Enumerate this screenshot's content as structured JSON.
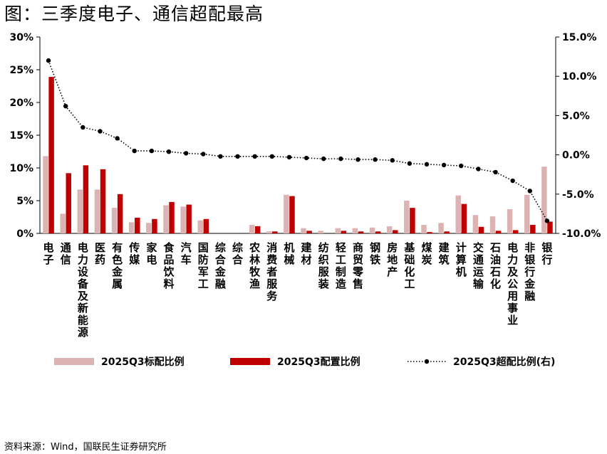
{
  "title": "图：三季度电子、通信超配最高",
  "source": "资料来源：Wind，国联民生证券研究所",
  "chart_data": {
    "type": "bar",
    "categories": [
      "电子",
      "通信",
      "电力设备及新能源",
      "医药",
      "有色金属",
      "传媒",
      "家电",
      "食品饮料",
      "汽车",
      "国防军工",
      "综合金融",
      "综合",
      "农林牧渔",
      "消费者服务",
      "机械",
      "建材",
      "纺织服装",
      "轻工制造",
      "商贸零售",
      "钢铁",
      "房地产",
      "基础化工",
      "煤炭",
      "建筑",
      "计算机",
      "交通运输",
      "石油石化",
      "电力及公用事业",
      "非银行金融",
      "银行"
    ],
    "series": [
      {
        "name": "2025Q3标配比例",
        "type": "bar",
        "axis": "left",
        "color": "#dcb3b3",
        "values": [
          11.8,
          3.0,
          6.7,
          6.7,
          3.9,
          1.7,
          1.6,
          4.3,
          4.1,
          2.0,
          0.0,
          0.0,
          1.3,
          0.3,
          5.9,
          0.8,
          0.4,
          0.8,
          0.8,
          0.9,
          1.1,
          5.0,
          1.3,
          1.6,
          5.8,
          2.8,
          2.6,
          3.7,
          5.9,
          10.2
        ]
      },
      {
        "name": "2025Q3配置比例",
        "type": "bar",
        "axis": "left",
        "color": "#c00000",
        "values": [
          23.9,
          9.2,
          10.4,
          9.8,
          6.0,
          2.4,
          2.2,
          4.8,
          4.4,
          2.2,
          0.0,
          0.0,
          1.1,
          0.3,
          5.7,
          0.4,
          0.0,
          0.4,
          0.3,
          0.3,
          0.5,
          3.9,
          0.2,
          0.3,
          4.5,
          1.0,
          0.4,
          0.5,
          1.3,
          1.8
        ]
      },
      {
        "name": "2025Q3超配比例(右)",
        "type": "line",
        "axis": "right",
        "color": "#000000",
        "values": [
          12.0,
          6.2,
          3.5,
          3.0,
          2.1,
          0.5,
          0.5,
          0.4,
          0.2,
          0.1,
          -0.2,
          -0.2,
          -0.2,
          -0.2,
          -0.3,
          -0.4,
          -0.5,
          -0.5,
          -0.6,
          -0.6,
          -0.7,
          -1.1,
          -1.2,
          -1.3,
          -1.4,
          -1.8,
          -2.2,
          -3.3,
          -4.6,
          -8.4
        ]
      }
    ],
    "y_left": {
      "min": 0,
      "max": 30,
      "step": 5,
      "format": "percent0"
    },
    "y_right": {
      "min": -10,
      "max": 15,
      "step": 5,
      "format": "percent1"
    },
    "legend_position": "bottom",
    "grid": false
  }
}
